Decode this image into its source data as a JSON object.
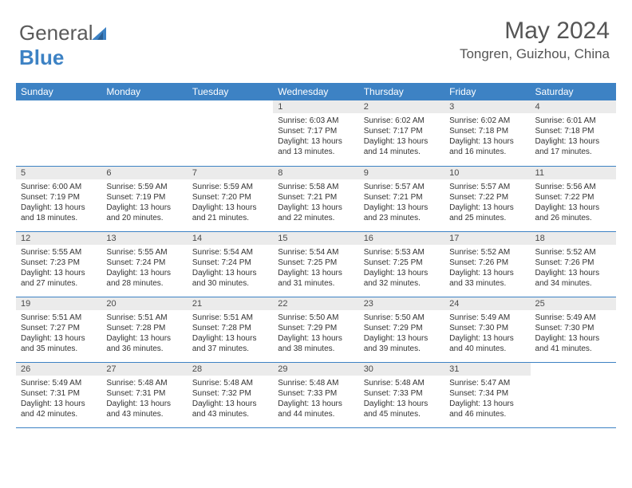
{
  "logo": {
    "text1": "General",
    "text2": "Blue"
  },
  "title": "May 2024",
  "location": "Tongren, Guizhou, China",
  "colors": {
    "header_bg": "#3d82c4",
    "header_text": "#ffffff",
    "daynum_bg": "#ebebeb",
    "row_border": "#3d82c4",
    "body_text": "#333333",
    "title_text": "#555555"
  },
  "weekdays": [
    "Sunday",
    "Monday",
    "Tuesday",
    "Wednesday",
    "Thursday",
    "Friday",
    "Saturday"
  ],
  "weeks": [
    [
      {
        "n": "",
        "sr": "",
        "ss": "",
        "dl": ""
      },
      {
        "n": "",
        "sr": "",
        "ss": "",
        "dl": ""
      },
      {
        "n": "",
        "sr": "",
        "ss": "",
        "dl": ""
      },
      {
        "n": "1",
        "sr": "Sunrise: 6:03 AM",
        "ss": "Sunset: 7:17 PM",
        "dl": "Daylight: 13 hours and 13 minutes."
      },
      {
        "n": "2",
        "sr": "Sunrise: 6:02 AM",
        "ss": "Sunset: 7:17 PM",
        "dl": "Daylight: 13 hours and 14 minutes."
      },
      {
        "n": "3",
        "sr": "Sunrise: 6:02 AM",
        "ss": "Sunset: 7:18 PM",
        "dl": "Daylight: 13 hours and 16 minutes."
      },
      {
        "n": "4",
        "sr": "Sunrise: 6:01 AM",
        "ss": "Sunset: 7:18 PM",
        "dl": "Daylight: 13 hours and 17 minutes."
      }
    ],
    [
      {
        "n": "5",
        "sr": "Sunrise: 6:00 AM",
        "ss": "Sunset: 7:19 PM",
        "dl": "Daylight: 13 hours and 18 minutes."
      },
      {
        "n": "6",
        "sr": "Sunrise: 5:59 AM",
        "ss": "Sunset: 7:19 PM",
        "dl": "Daylight: 13 hours and 20 minutes."
      },
      {
        "n": "7",
        "sr": "Sunrise: 5:59 AM",
        "ss": "Sunset: 7:20 PM",
        "dl": "Daylight: 13 hours and 21 minutes."
      },
      {
        "n": "8",
        "sr": "Sunrise: 5:58 AM",
        "ss": "Sunset: 7:21 PM",
        "dl": "Daylight: 13 hours and 22 minutes."
      },
      {
        "n": "9",
        "sr": "Sunrise: 5:57 AM",
        "ss": "Sunset: 7:21 PM",
        "dl": "Daylight: 13 hours and 23 minutes."
      },
      {
        "n": "10",
        "sr": "Sunrise: 5:57 AM",
        "ss": "Sunset: 7:22 PM",
        "dl": "Daylight: 13 hours and 25 minutes."
      },
      {
        "n": "11",
        "sr": "Sunrise: 5:56 AM",
        "ss": "Sunset: 7:22 PM",
        "dl": "Daylight: 13 hours and 26 minutes."
      }
    ],
    [
      {
        "n": "12",
        "sr": "Sunrise: 5:55 AM",
        "ss": "Sunset: 7:23 PM",
        "dl": "Daylight: 13 hours and 27 minutes."
      },
      {
        "n": "13",
        "sr": "Sunrise: 5:55 AM",
        "ss": "Sunset: 7:24 PM",
        "dl": "Daylight: 13 hours and 28 minutes."
      },
      {
        "n": "14",
        "sr": "Sunrise: 5:54 AM",
        "ss": "Sunset: 7:24 PM",
        "dl": "Daylight: 13 hours and 30 minutes."
      },
      {
        "n": "15",
        "sr": "Sunrise: 5:54 AM",
        "ss": "Sunset: 7:25 PM",
        "dl": "Daylight: 13 hours and 31 minutes."
      },
      {
        "n": "16",
        "sr": "Sunrise: 5:53 AM",
        "ss": "Sunset: 7:25 PM",
        "dl": "Daylight: 13 hours and 32 minutes."
      },
      {
        "n": "17",
        "sr": "Sunrise: 5:52 AM",
        "ss": "Sunset: 7:26 PM",
        "dl": "Daylight: 13 hours and 33 minutes."
      },
      {
        "n": "18",
        "sr": "Sunrise: 5:52 AM",
        "ss": "Sunset: 7:26 PM",
        "dl": "Daylight: 13 hours and 34 minutes."
      }
    ],
    [
      {
        "n": "19",
        "sr": "Sunrise: 5:51 AM",
        "ss": "Sunset: 7:27 PM",
        "dl": "Daylight: 13 hours and 35 minutes."
      },
      {
        "n": "20",
        "sr": "Sunrise: 5:51 AM",
        "ss": "Sunset: 7:28 PM",
        "dl": "Daylight: 13 hours and 36 minutes."
      },
      {
        "n": "21",
        "sr": "Sunrise: 5:51 AM",
        "ss": "Sunset: 7:28 PM",
        "dl": "Daylight: 13 hours and 37 minutes."
      },
      {
        "n": "22",
        "sr": "Sunrise: 5:50 AM",
        "ss": "Sunset: 7:29 PM",
        "dl": "Daylight: 13 hours and 38 minutes."
      },
      {
        "n": "23",
        "sr": "Sunrise: 5:50 AM",
        "ss": "Sunset: 7:29 PM",
        "dl": "Daylight: 13 hours and 39 minutes."
      },
      {
        "n": "24",
        "sr": "Sunrise: 5:49 AM",
        "ss": "Sunset: 7:30 PM",
        "dl": "Daylight: 13 hours and 40 minutes."
      },
      {
        "n": "25",
        "sr": "Sunrise: 5:49 AM",
        "ss": "Sunset: 7:30 PM",
        "dl": "Daylight: 13 hours and 41 minutes."
      }
    ],
    [
      {
        "n": "26",
        "sr": "Sunrise: 5:49 AM",
        "ss": "Sunset: 7:31 PM",
        "dl": "Daylight: 13 hours and 42 minutes."
      },
      {
        "n": "27",
        "sr": "Sunrise: 5:48 AM",
        "ss": "Sunset: 7:31 PM",
        "dl": "Daylight: 13 hours and 43 minutes."
      },
      {
        "n": "28",
        "sr": "Sunrise: 5:48 AM",
        "ss": "Sunset: 7:32 PM",
        "dl": "Daylight: 13 hours and 43 minutes."
      },
      {
        "n": "29",
        "sr": "Sunrise: 5:48 AM",
        "ss": "Sunset: 7:33 PM",
        "dl": "Daylight: 13 hours and 44 minutes."
      },
      {
        "n": "30",
        "sr": "Sunrise: 5:48 AM",
        "ss": "Sunset: 7:33 PM",
        "dl": "Daylight: 13 hours and 45 minutes."
      },
      {
        "n": "31",
        "sr": "Sunrise: 5:47 AM",
        "ss": "Sunset: 7:34 PM",
        "dl": "Daylight: 13 hours and 46 minutes."
      },
      {
        "n": "",
        "sr": "",
        "ss": "",
        "dl": ""
      }
    ]
  ]
}
